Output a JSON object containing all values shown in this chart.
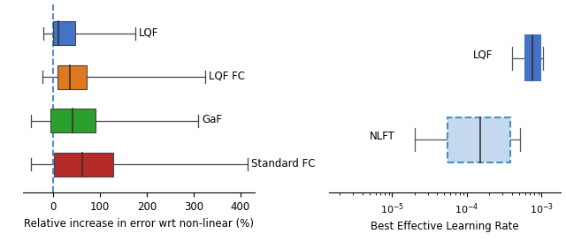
{
  "left": {
    "xlabel": "Relative increase in error wrt non-linear (%)",
    "xlim": [
      -65,
      430
    ],
    "xticks": [
      0,
      100,
      200,
      300,
      400
    ],
    "dashed_line_x": 0,
    "boxes": [
      {
        "label": "LQF",
        "color": "#4472c4",
        "y": 3,
        "whisker_low": -20,
        "q1": 0,
        "median": 12,
        "q3": 48,
        "whisker_high": 175
      },
      {
        "label": "LQF FC",
        "color": "#e07820",
        "y": 2,
        "whisker_low": -22,
        "q1": 10,
        "median": 35,
        "q3": 72,
        "whisker_high": 325
      },
      {
        "label": "GaF",
        "color": "#2ca02c",
        "y": 1,
        "whisker_low": -48,
        "q1": -5,
        "median": 42,
        "q3": 90,
        "whisker_high": 310
      },
      {
        "label": "Standard FC",
        "color": "#b52b27",
        "y": 0,
        "whisker_low": -48,
        "q1": 2,
        "median": 62,
        "q3": 128,
        "whisker_high": 415
      }
    ]
  },
  "right": {
    "xlabel": "Best Effective Learning Rate",
    "boxes": [
      {
        "label": "LQF",
        "color": "#4472c4",
        "facecolor": "#4472c4",
        "linestyle": "solid",
        "y": 1,
        "whisker_low": 0.0004,
        "q1": 0.0006,
        "median": 0.00075,
        "q3": 0.00095,
        "whisker_high": 0.00105
      },
      {
        "label": "NLFT",
        "color": "#4a90c4",
        "facecolor": "#c5d9ee",
        "linestyle": "dashed",
        "y": 0,
        "whisker_low": 2e-05,
        "q1": 5.5e-05,
        "median": 0.00015,
        "q3": 0.00038,
        "whisker_high": 0.00052
      }
    ]
  }
}
